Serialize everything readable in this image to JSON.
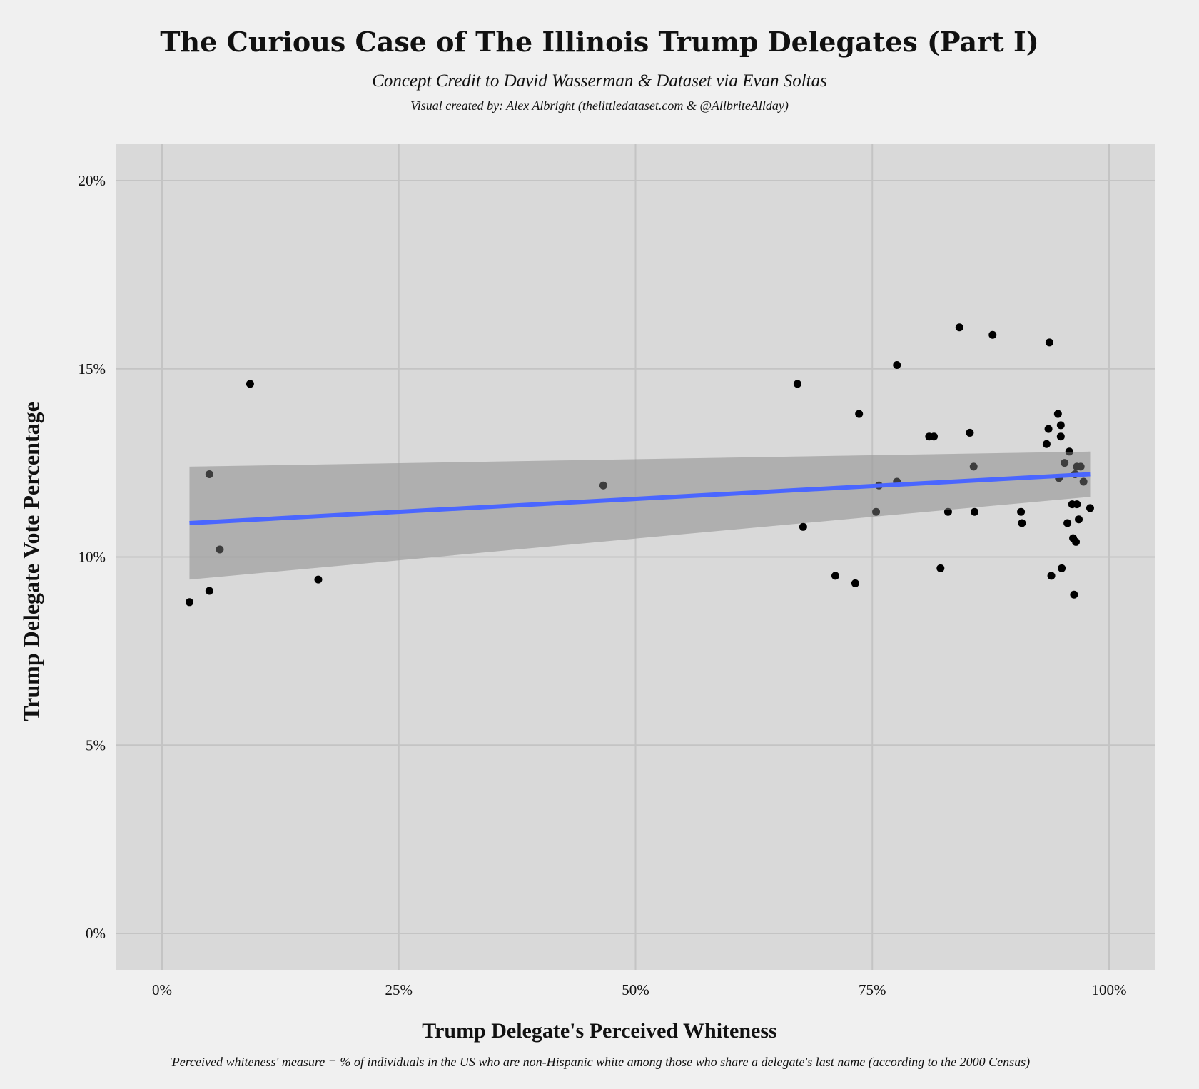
{
  "chart_data": {
    "type": "scatter",
    "title": "The Curious Case of The Illinois Trump Delegates (Part I)",
    "subtitle": "Concept Credit to David Wasserman & Dataset via Evan Soltas",
    "credit": "Visual created by: Alex Albright (thelittledataset.com & @AllbriteAllday)",
    "xlabel": "Trump Delegate's Perceived Whiteness",
    "ylabel": "Trump Delegate Vote Percentage",
    "footnote": "'Perceived whiteness' measure = % of individuals in the US who are non-Hispanic white among those who share a delegate's last name (according to the 2000 Census)",
    "xlim": [
      -5,
      104.8
    ],
    "ylim": [
      -1,
      21
    ],
    "grid": true,
    "x_ticks": [
      0,
      25,
      50,
      75,
      100
    ],
    "x_tick_labels": [
      "0%",
      "25%",
      "50%",
      "75%",
      "100%"
    ],
    "y_ticks": [
      0,
      5,
      10,
      15,
      20
    ],
    "y_tick_labels": [
      "0%",
      "5%",
      "10%",
      "15%",
      "20%"
    ],
    "points": [
      [
        2.9,
        8.8
      ],
      [
        5.0,
        9.1
      ],
      [
        5.0,
        12.2
      ],
      [
        6.1,
        10.2
      ],
      [
        9.3,
        14.6
      ],
      [
        16.5,
        9.4
      ],
      [
        46.6,
        11.9
      ],
      [
        67.1,
        14.6
      ],
      [
        67.7,
        10.8
      ],
      [
        71.1,
        9.5
      ],
      [
        73.2,
        9.3
      ],
      [
        73.6,
        13.8
      ],
      [
        75.4,
        11.2
      ],
      [
        75.7,
        11.9
      ],
      [
        77.6,
        12.0
      ],
      [
        77.6,
        15.1
      ],
      [
        81.0,
        13.2
      ],
      [
        81.5,
        13.2
      ],
      [
        82.2,
        9.7
      ],
      [
        83.0,
        11.2
      ],
      [
        84.2,
        16.1
      ],
      [
        85.3,
        13.3
      ],
      [
        85.7,
        12.4
      ],
      [
        85.8,
        11.2
      ],
      [
        87.7,
        15.9
      ],
      [
        90.7,
        11.2
      ],
      [
        90.8,
        10.9
      ],
      [
        93.4,
        13.0
      ],
      [
        93.6,
        13.4
      ],
      [
        93.7,
        15.7
      ],
      [
        93.9,
        9.5
      ],
      [
        94.6,
        13.8
      ],
      [
        94.7,
        12.1
      ],
      [
        94.9,
        13.5
      ],
      [
        94.9,
        13.2
      ],
      [
        95.0,
        9.7
      ],
      [
        95.3,
        12.5
      ],
      [
        95.6,
        10.9
      ],
      [
        95.8,
        12.8
      ],
      [
        96.1,
        11.4
      ],
      [
        96.2,
        10.5
      ],
      [
        96.3,
        9.0
      ],
      [
        96.4,
        12.2
      ],
      [
        96.5,
        10.4
      ],
      [
        96.6,
        11.4
      ],
      [
        96.6,
        12.4
      ],
      [
        96.8,
        11.0
      ],
      [
        97.0,
        12.4
      ],
      [
        97.3,
        12.0
      ],
      [
        98.0,
        11.3
      ]
    ],
    "fit": {
      "method": "linear",
      "x": [
        2.9,
        98.0
      ],
      "y": [
        10.9,
        12.2
      ],
      "ci_lower": [
        9.4,
        11.6
      ],
      "ci_upper": [
        12.4,
        12.8
      ]
    },
    "colors": {
      "background": "#f0f0f0",
      "panel": "#d9d9d9",
      "grid": "#c4c4c4",
      "point": "#000000",
      "fit_line": "#4a66ff",
      "ribbon": "#999999"
    }
  }
}
